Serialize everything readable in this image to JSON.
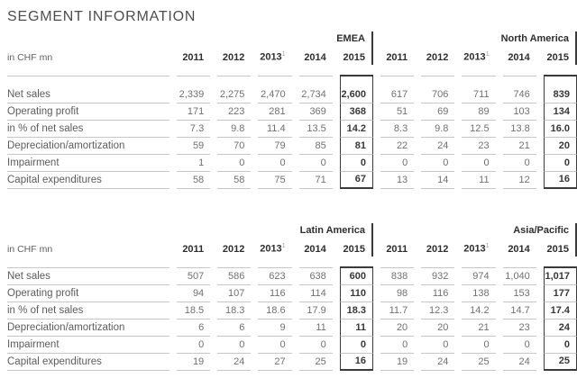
{
  "title": "SEGMENT INFORMATION",
  "unit_label": "in CHF mn",
  "footnote_marker": "1",
  "footnote_year_index": 2,
  "years": [
    "2011",
    "2012",
    "2013",
    "2014",
    "2015"
  ],
  "row_labels": [
    "Net sales",
    "Operating profit",
    "in % of net sales",
    "Depreciation/amortization",
    "Impairment",
    "Capital expenditures"
  ],
  "accent_colors": {
    "rule_gray": "#c7c7c7",
    "highlight_border": "#3a3a3a",
    "header_text": "#2e2e2e",
    "value_text": "#707070"
  },
  "tables": [
    {
      "groups": [
        {
          "region": "EMEA",
          "rows": [
            [
              "2,339",
              "2,275",
              "2,470",
              "2,734",
              "2,600"
            ],
            [
              "171",
              "223",
              "281",
              "369",
              "368"
            ],
            [
              "7.3",
              "9.8",
              "11.4",
              "13.5",
              "14.2"
            ],
            [
              "59",
              "70",
              "79",
              "85",
              "81"
            ],
            [
              "1",
              "0",
              "0",
              "0",
              "0"
            ],
            [
              "58",
              "58",
              "75",
              "71",
              "67"
            ]
          ]
        },
        {
          "region": "North America",
          "rows": [
            [
              "617",
              "706",
              "711",
              "746",
              "839"
            ],
            [
              "51",
              "69",
              "89",
              "103",
              "134"
            ],
            [
              "8.3",
              "9.8",
              "12.5",
              "13.8",
              "16.0"
            ],
            [
              "22",
              "24",
              "23",
              "21",
              "20"
            ],
            [
              "0",
              "0",
              "0",
              "0",
              "0"
            ],
            [
              "13",
              "14",
              "11",
              "12",
              "16"
            ]
          ]
        }
      ]
    },
    {
      "groups": [
        {
          "region": "Latin America",
          "rows": [
            [
              "507",
              "586",
              "623",
              "638",
              "600"
            ],
            [
              "94",
              "107",
              "116",
              "114",
              "110"
            ],
            [
              "18.5",
              "18.3",
              "18.6",
              "17.9",
              "18.3"
            ],
            [
              "6",
              "6",
              "9",
              "11",
              "11"
            ],
            [
              "0",
              "0",
              "0",
              "0",
              "0"
            ],
            [
              "19",
              "24",
              "27",
              "25",
              "16"
            ]
          ]
        },
        {
          "region": "Asia/Pacific",
          "rows": [
            [
              "838",
              "932",
              "974",
              "1,040",
              "1,017"
            ],
            [
              "98",
              "116",
              "138",
              "153",
              "177"
            ],
            [
              "11.7",
              "12.3",
              "14.2",
              "14.7",
              "17.4"
            ],
            [
              "20",
              "20",
              "21",
              "23",
              "24"
            ],
            [
              "0",
              "0",
              "0",
              "0",
              "0"
            ],
            [
              "19",
              "24",
              "25",
              "24",
              "25"
            ]
          ]
        }
      ]
    }
  ]
}
